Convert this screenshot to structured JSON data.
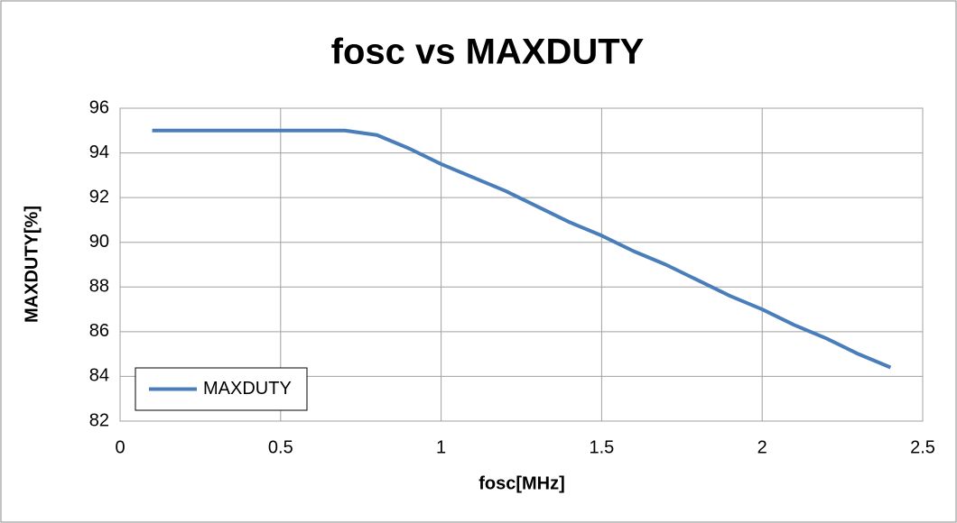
{
  "chart_data": {
    "type": "line",
    "title": "fosc vs MAXDUTY",
    "x_label": "fosc[MHz]",
    "y_label": "MAXDUTY[%]",
    "x": [
      0.1,
      0.2,
      0.3,
      0.4,
      0.5,
      0.6,
      0.7,
      0.8,
      0.9,
      1.0,
      1.1,
      1.2,
      1.3,
      1.4,
      1.5,
      1.6,
      1.7,
      1.8,
      1.9,
      2.0,
      2.1,
      2.2,
      2.3,
      2.4
    ],
    "series": [
      {
        "name": "MAXDUTY",
        "color": "#4a7ebb",
        "values": [
          95,
          95,
          95,
          95,
          95,
          95,
          95,
          94.8,
          94.2,
          93.5,
          92.9,
          92.3,
          91.6,
          90.9,
          90.3,
          89.6,
          89.0,
          88.3,
          87.6,
          87.0,
          86.3,
          85.7,
          85.0,
          84.4
        ]
      }
    ],
    "xlim": [
      0,
      2.5
    ],
    "xticks": [
      0,
      0.5,
      1,
      1.5,
      2,
      2.5
    ],
    "ylim": [
      82,
      96
    ],
    "yticks": [
      82,
      84,
      86,
      88,
      90,
      92,
      94,
      96
    ],
    "grid": true,
    "legend": "lower left"
  }
}
